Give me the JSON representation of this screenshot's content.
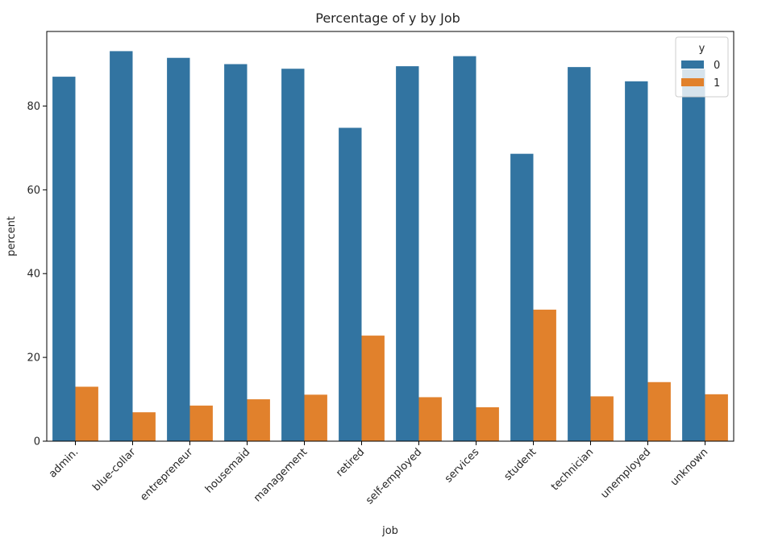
{
  "chart_data": {
    "type": "bar",
    "title": "Percentage of y by Job",
    "xlabel": "job",
    "ylabel": "percent",
    "categories": [
      "admin.",
      "blue-collar",
      "entrepreneur",
      "housemaid",
      "management",
      "retired",
      "self-employed",
      "services",
      "student",
      "technician",
      "unemployed",
      "unknown"
    ],
    "series": [
      {
        "name": "0",
        "color": "#3274a1",
        "values": [
          87.0,
          93.1,
          91.5,
          90.0,
          88.9,
          74.8,
          89.5,
          91.9,
          68.6,
          89.3,
          85.9,
          88.8
        ]
      },
      {
        "name": "1",
        "color": "#e1812c",
        "values": [
          13.0,
          6.9,
          8.5,
          10.0,
          11.1,
          25.2,
          10.5,
          8.1,
          31.4,
          10.7,
          14.1,
          11.2
        ]
      }
    ],
    "ylim": [
      0,
      97.8
    ],
    "yticks": [
      0,
      20,
      40,
      60,
      80
    ],
    "legend": {
      "title": "y",
      "position": "top-right"
    },
    "grid": false
  }
}
